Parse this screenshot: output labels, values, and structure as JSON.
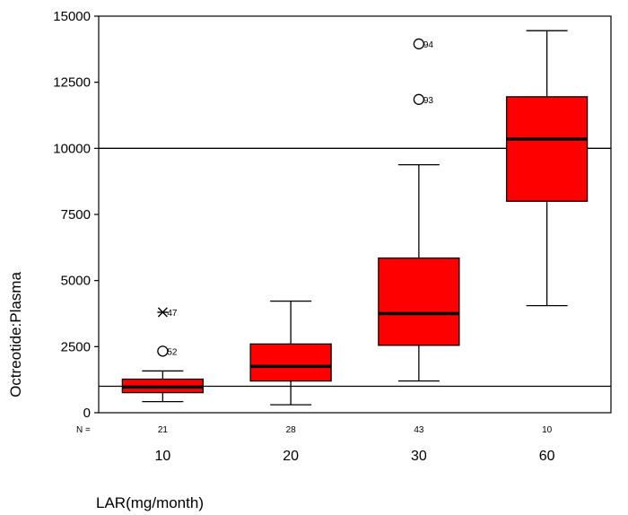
{
  "chart_data": {
    "type": "box",
    "ylabel": "Octreotide:Plasma",
    "xlabel": "LAR(mg/month)",
    "ylim": [
      0,
      15000
    ],
    "yticks": [
      "0",
      "2500",
      "5000",
      "7500",
      "10000",
      "12500",
      "15000"
    ],
    "ytick_values": [
      0,
      2500,
      5000,
      7500,
      10000,
      12500,
      15000
    ],
    "n_label": "N =",
    "reference_lines": [
      1000,
      10000
    ],
    "box_color": "#ff0000",
    "grid": false,
    "groups": [
      {
        "category": "10",
        "n": "21",
        "whisker_low": 420,
        "q1": 760,
        "median": 970,
        "q3": 1270,
        "whisker_high": 1580,
        "outliers": [
          {
            "value": 3800,
            "label": "47",
            "marker": "star"
          },
          {
            "value": 2330,
            "label": "52",
            "marker": "circle"
          }
        ]
      },
      {
        "category": "20",
        "n": "28",
        "whisker_low": 300,
        "q1": 1200,
        "median": 1750,
        "q3": 2600,
        "whisker_high": 4220,
        "outliers": []
      },
      {
        "category": "30",
        "n": "43",
        "whisker_low": 1200,
        "q1": 2550,
        "median": 3750,
        "q3": 5850,
        "whisker_high": 9380,
        "outliers": [
          {
            "value": 13950,
            "label": "94",
            "marker": "circle"
          },
          {
            "value": 11850,
            "label": "93",
            "marker": "circle"
          }
        ]
      },
      {
        "category": "60",
        "n": "10",
        "whisker_low": 4050,
        "q1": 8000,
        "median": 10350,
        "q3": 11950,
        "whisker_high": 14450,
        "outliers": []
      }
    ]
  }
}
